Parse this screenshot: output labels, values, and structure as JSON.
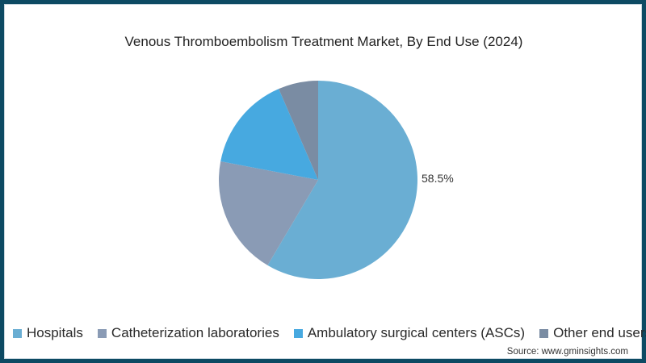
{
  "chart_data": {
    "type": "pie",
    "title": "Venous Thromboembolism Treatment Market, By End Use (2024)",
    "categories": [
      "Hospitals",
      "Catheterization laboratories",
      "Ambulatory surgical centers (ASCs)",
      "Other end users"
    ],
    "values": [
      58.5,
      19.5,
      15.5,
      6.5
    ],
    "colors": [
      "#6aaed3",
      "#8a9bb5",
      "#47a9e0",
      "#7a8ca3"
    ],
    "data_labels": [
      {
        "category": "Hospitals",
        "text": "58.5%"
      }
    ],
    "legend_position": "bottom"
  },
  "title": "Venous Thromboembolism Treatment Market, By End Use (2024)",
  "label_hospitals": "58.5%",
  "legend": [
    {
      "label": "Hospitals",
      "color": "#6aaed3"
    },
    {
      "label": "Catheterization laboratories",
      "color": "#8a9bb5"
    },
    {
      "label": "Ambulatory surgical centers (ASCs)",
      "color": "#47a9e0"
    },
    {
      "label": "Other end users",
      "color": "#7a8ca3"
    }
  ],
  "source": "Source: www.gminsights.com"
}
